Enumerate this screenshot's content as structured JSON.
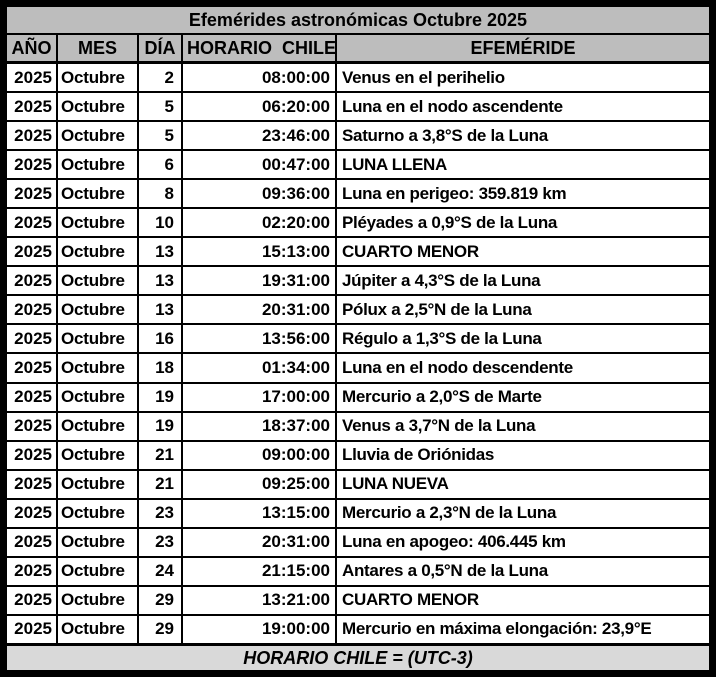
{
  "title": "Efemérides astronómicas Octubre 2025",
  "columns": [
    "AÑO",
    "MES",
    "DÍA",
    "HORARIO  CHILE",
    "EFEMÉRIDE"
  ],
  "footer": "HORARIO CHILE = (UTC-3)",
  "colors": {
    "header_bg": "#bdbdbd",
    "footer_bg": "#d9d9d9",
    "grid_border": "#000000",
    "row_bg": "#ffffff"
  },
  "rows": [
    {
      "year": "2025",
      "month": "Octubre",
      "day": "2",
      "time": "08:00:00",
      "event": "Venus en el perihelio"
    },
    {
      "year": "2025",
      "month": "Octubre",
      "day": "5",
      "time": "06:20:00",
      "event": "Luna en el nodo ascendente"
    },
    {
      "year": "2025",
      "month": "Octubre",
      "day": "5",
      "time": "23:46:00",
      "event": "Saturno a 3,8°S de la Luna"
    },
    {
      "year": "2025",
      "month": "Octubre",
      "day": "6",
      "time": "00:47:00",
      "event": "LUNA LLENA"
    },
    {
      "year": "2025",
      "month": "Octubre",
      "day": "8",
      "time": "09:36:00",
      "event": "Luna en perigeo: 359.819 km"
    },
    {
      "year": "2025",
      "month": "Octubre",
      "day": "10",
      "time": "02:20:00",
      "event": "Pléyades a 0,9°S de la Luna"
    },
    {
      "year": "2025",
      "month": "Octubre",
      "day": "13",
      "time": "15:13:00",
      "event": "CUARTO MENOR"
    },
    {
      "year": "2025",
      "month": "Octubre",
      "day": "13",
      "time": "19:31:00",
      "event": "Júpiter a 4,3°S de la Luna"
    },
    {
      "year": "2025",
      "month": "Octubre",
      "day": "13",
      "time": "20:31:00",
      "event": "Pólux a 2,5°N de la Luna"
    },
    {
      "year": "2025",
      "month": "Octubre",
      "day": "16",
      "time": "13:56:00",
      "event": "Régulo a 1,3°S de la Luna"
    },
    {
      "year": "2025",
      "month": "Octubre",
      "day": "18",
      "time": "01:34:00",
      "event": "Luna en el nodo descendente"
    },
    {
      "year": "2025",
      "month": "Octubre",
      "day": "19",
      "time": "17:00:00",
      "event": "Mercurio a 2,0°S de Marte"
    },
    {
      "year": "2025",
      "month": "Octubre",
      "day": "19",
      "time": "18:37:00",
      "event": "Venus a 3,7°N de la Luna"
    },
    {
      "year": "2025",
      "month": "Octubre",
      "day": "21",
      "time": "09:00:00",
      "event": "Lluvia de Oriónidas"
    },
    {
      "year": "2025",
      "month": "Octubre",
      "day": "21",
      "time": "09:25:00",
      "event": "LUNA NUEVA"
    },
    {
      "year": "2025",
      "month": "Octubre",
      "day": "23",
      "time": "13:15:00",
      "event": "Mercurio a 2,3°N de la Luna"
    },
    {
      "year": "2025",
      "month": "Octubre",
      "day": "23",
      "time": "20:31:00",
      "event": "Luna en apogeo: 406.445 km"
    },
    {
      "year": "2025",
      "month": "Octubre",
      "day": "24",
      "time": "21:15:00",
      "event": "Antares a 0,5°N de la Luna"
    },
    {
      "year": "2025",
      "month": "Octubre",
      "day": "29",
      "time": "13:21:00",
      "event": "CUARTO MENOR"
    },
    {
      "year": "2025",
      "month": "Octubre",
      "day": "29",
      "time": "19:00:00",
      "event": "Mercurio en máxima elongación: 23,9°E"
    }
  ]
}
